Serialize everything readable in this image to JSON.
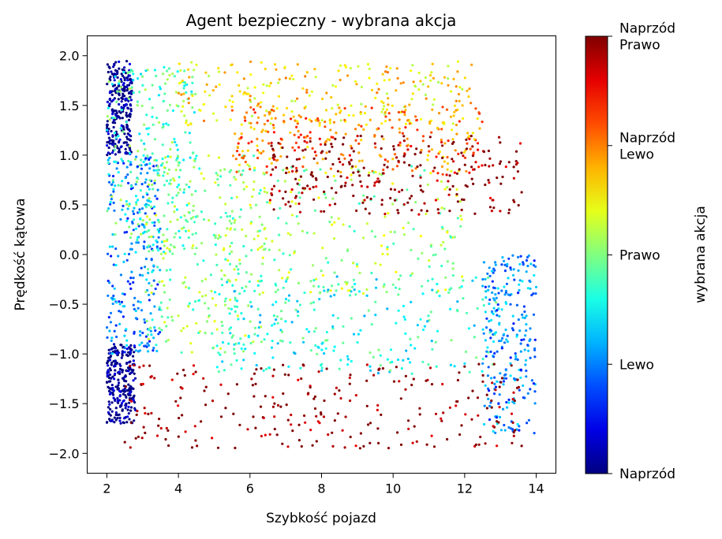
{
  "chart_data": {
    "type": "scatter",
    "title": "Agent bezpieczny - wybrana akcja",
    "xlabel": "Szybkość pojazd",
    "ylabel": "Prędkość kątowa",
    "xlim": [
      1.45,
      14.55
    ],
    "ylim": [
      -2.2,
      2.2
    ],
    "x_ticks": [
      2,
      4,
      6,
      8,
      10,
      12,
      14
    ],
    "x_tick_labels": [
      "2",
      "4",
      "6",
      "8",
      "10",
      "12",
      "14"
    ],
    "y_ticks": [
      -2.0,
      -1.5,
      -1.0,
      -0.5,
      0.0,
      0.5,
      1.0,
      1.5,
      2.0
    ],
    "y_tick_labels": [
      "−2.0",
      "−1.5",
      "−1.0",
      "−0.5",
      "0.0",
      "0.5",
      "1.0",
      "1.5",
      "2.0"
    ],
    "grid": false,
    "colormap": "jet",
    "colorbar": {
      "label": "wybrana akcja",
      "range": [
        0,
        4
      ],
      "ticks": [
        {
          "value": 0,
          "label": "Naprzód"
        },
        {
          "value": 1,
          "label": "Lewo"
        },
        {
          "value": 2,
          "label": "Prawo"
        },
        {
          "value": 3,
          "label": "Naprzód Lewo"
        },
        {
          "value": 4,
          "label": "Naprzód Prawo"
        }
      ]
    },
    "clusters": [
      {
        "x": [
          2.0,
          2.7
        ],
        "y": [
          1.0,
          1.95
        ],
        "action": 0
      },
      {
        "x": [
          2.0,
          2.8
        ],
        "y": [
          -1.7,
          -0.9
        ],
        "action": 0
      },
      {
        "x": [
          2.0,
          3.5
        ],
        "y": [
          -1.0,
          1.0
        ],
        "action": 1
      },
      {
        "x": [
          2.0,
          4.5
        ],
        "y": [
          0.0,
          1.9
        ],
        "action": 1.8
      },
      {
        "x": [
          3.0,
          6.5
        ],
        "y": [
          -1.0,
          1.0
        ],
        "action": 2
      },
      {
        "x": [
          4.0,
          12.2
        ],
        "y": [
          1.3,
          1.95
        ],
        "action": 2.6
      },
      {
        "x": [
          5.5,
          12.5
        ],
        "y": [
          0.8,
          1.5
        ],
        "action": 3
      },
      {
        "x": [
          5.0,
          12.0
        ],
        "y": [
          -0.4,
          0.9
        ],
        "action": 2.1
      },
      {
        "x": [
          5.0,
          13.0
        ],
        "y": [
          -1.2,
          -0.2
        ],
        "action": 1.6
      },
      {
        "x": [
          12.5,
          14.0
        ],
        "y": [
          -1.8,
          0.0
        ],
        "action": 1
      },
      {
        "x": [
          2.5,
          13.6
        ],
        "y": [
          -1.95,
          -1.1
        ],
        "action": 4
      },
      {
        "x": [
          6.5,
          13.6
        ],
        "y": [
          0.4,
          1.2
        ],
        "action": 4
      }
    ]
  }
}
